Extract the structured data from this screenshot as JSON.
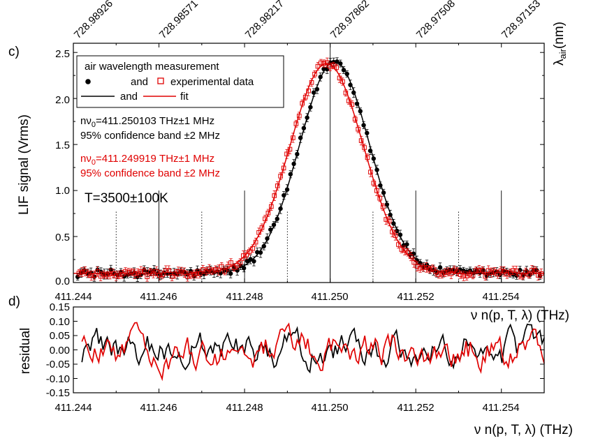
{
  "chart_data": [
    {
      "panel": "c)",
      "type": "scatter",
      "ylabel": "LIF signal (Vrms)",
      "x_range": [
        411.244,
        411.255
      ],
      "ylim": [
        0.0,
        2.6
      ],
      "x_ticks": [
        "411.244",
        "411.246",
        "411.248",
        "411.250",
        "411.252",
        "411.254"
      ],
      "x_tick_values": [
        411.244,
        411.246,
        411.248,
        411.25,
        411.252,
        411.254
      ],
      "y_ticks": [
        "0.0",
        "0.5",
        "1.0",
        "1.5",
        "2.0",
        "2.5"
      ],
      "y_tick_values": [
        0.0,
        0.5,
        1.0,
        1.5,
        2.0,
        2.5
      ],
      "top_axis": {
        "label": "λ",
        "label_sub": "air",
        "label_unit": "(nm)",
        "tick_labels": [
          "728.98926",
          "728.98571",
          "728.98217",
          "728.97862",
          "728.97508",
          "728.97153"
        ],
        "tick_positions_freq": [
          411.244,
          411.246,
          411.248,
          411.25,
          411.252,
          411.254
        ]
      },
      "vertical_lines": [
        {
          "x": 411.245,
          "style": "dotted"
        },
        {
          "x": 411.246,
          "style": "solid"
        },
        {
          "x": 411.247,
          "style": "dotted"
        },
        {
          "x": 411.248,
          "style": "solid"
        },
        {
          "x": 411.249,
          "style": "dotted"
        },
        {
          "x": 411.25,
          "style": "solid"
        },
        {
          "x": 411.251,
          "style": "dotted"
        },
        {
          "x": 411.252,
          "style": "solid"
        },
        {
          "x": 411.253,
          "style": "dotted"
        },
        {
          "x": 411.254,
          "style": "solid"
        }
      ],
      "series": [
        {
          "name": "air wavelength measurement",
          "color": "#000000",
          "marker": "filled-circle",
          "center": 411.250103,
          "amplitude": 2.3,
          "sigma": 0.00082,
          "baseline": 0.1,
          "n_points": 140
        },
        {
          "name": "experimental data",
          "color": "#e00000",
          "marker": "open-square",
          "center": 411.249919,
          "amplitude": 2.28,
          "sigma": 0.00086,
          "baseline": 0.1,
          "n_points": 150
        }
      ],
      "fit_series": [
        {
          "name": "fit",
          "color": "#e00000",
          "center": 411.249919
        },
        {
          "name": "",
          "color": "#000000",
          "center": 411.250103
        }
      ],
      "legend": {
        "title": "air wavelength measurement",
        "row1_and": "and",
        "row1_label": "experimental data",
        "row2_and": "and",
        "row2_label": "fit",
        "placement": "top-left"
      },
      "annotations": {
        "black_line1_prefix": "nν",
        "black_line1_sub": "0",
        "black_line1_rest": "=411.250103 THz±1 MHz",
        "black_line2": "95% confidence band ±2 MHz",
        "red_line1_prefix": "nν",
        "red_line1_sub": "0",
        "red_line1_rest": "=411.249919 THz±1 MHz",
        "red_line2": "95% confidence band ±2 MHz",
        "temperature": "T=3500±100K"
      }
    },
    {
      "panel": "d)",
      "type": "line",
      "ylabel": "residual",
      "xlabel": "ν n(p, T, λ) (THz)",
      "inner_xlabel": "ν n(p, T, λ) (THz)",
      "x_range": [
        411.244,
        411.255
      ],
      "ylim": [
        -0.15,
        0.15
      ],
      "x_ticks": [
        "411.244",
        "411.246",
        "411.248",
        "411.250",
        "411.252",
        "411.254"
      ],
      "x_tick_values": [
        411.244,
        411.246,
        411.248,
        411.25,
        411.252,
        411.254
      ],
      "y_ticks": [
        "0.15",
        "0.10",
        "0.05",
        "0.00",
        "-0.05",
        "-0.10",
        "-0.15"
      ],
      "y_tick_values": [
        0.15,
        0.1,
        0.05,
        0.0,
        -0.05,
        -0.1,
        -0.15
      ],
      "series": [
        {
          "name": "",
          "color": "#000000",
          "n_points": 220,
          "amplitude": 0.045
        },
        {
          "name": "",
          "color": "#e00000",
          "n_points": 220,
          "amplitude": 0.045
        }
      ]
    }
  ]
}
